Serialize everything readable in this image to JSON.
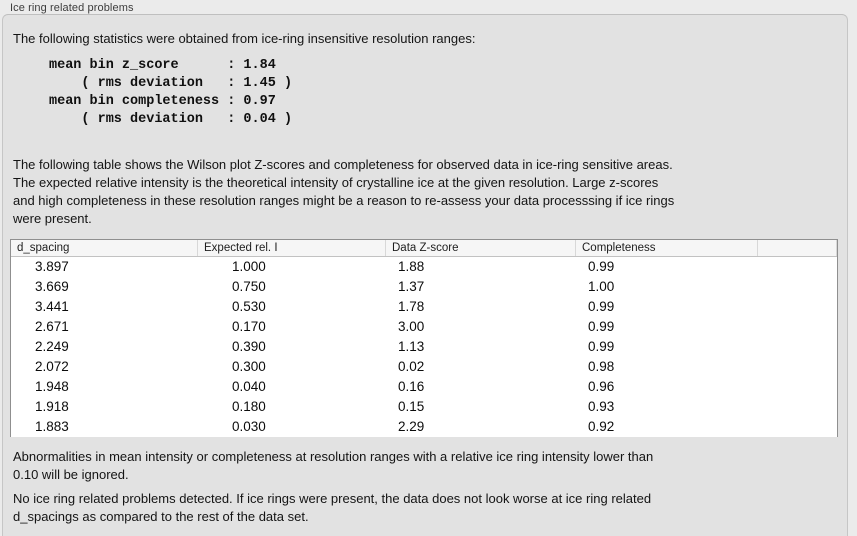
{
  "panel": {
    "title": "Ice ring related problems"
  },
  "intro": "The following statistics were obtained from ice-ring insensitive resolution ranges:",
  "stats_block": "mean bin z_score      : 1.84\n    ( rms deviation   : 1.45 )\nmean bin completeness : 0.97\n    ( rms deviation   : 0.04 )",
  "table_intro": "The following table shows the Wilson plot Z-scores and completeness for observed data in ice-ring sensitive areas.\nThe expected relative intensity is the theoretical intensity of crystalline ice at the given resolution. Large z-scores\nand high completeness in these resolution ranges might be a reason to re-assess your data processsing if ice rings\nwere present.",
  "table": {
    "columns": [
      "d_spacing",
      "Expected rel. I",
      "Data Z-score",
      "Completeness",
      ""
    ],
    "rows": [
      [
        "3.897",
        "1.000",
        "1.88",
        "0.99"
      ],
      [
        "3.669",
        "0.750",
        "1.37",
        "1.00"
      ],
      [
        "3.441",
        "0.530",
        "1.78",
        "0.99"
      ],
      [
        "2.671",
        "0.170",
        "3.00",
        "0.99"
      ],
      [
        "2.249",
        "0.390",
        "1.13",
        "0.99"
      ],
      [
        "2.072",
        "0.300",
        "0.02",
        "0.98"
      ],
      [
        "1.948",
        "0.040",
        "0.16",
        "0.96"
      ],
      [
        "1.918",
        "0.180",
        "0.15",
        "0.93"
      ],
      [
        "1.883",
        "0.030",
        "2.29",
        "0.92"
      ]
    ]
  },
  "note_ignore": "Abnormalities in mean intensity or completeness at resolution ranges with a relative ice ring intensity lower than\n0.10 will be ignored.",
  "conclusion": "No ice ring related problems detected. If ice rings were present, the data does not look worse at ice ring related\nd_spacings as compared to the rest of the data set.",
  "colors": {
    "page_background": "#ebebeb",
    "groupbox_background": "#e2e2e2",
    "table_header_background": "#f6f6f6",
    "table_body_background": "#ffffff",
    "text": "#141414"
  }
}
